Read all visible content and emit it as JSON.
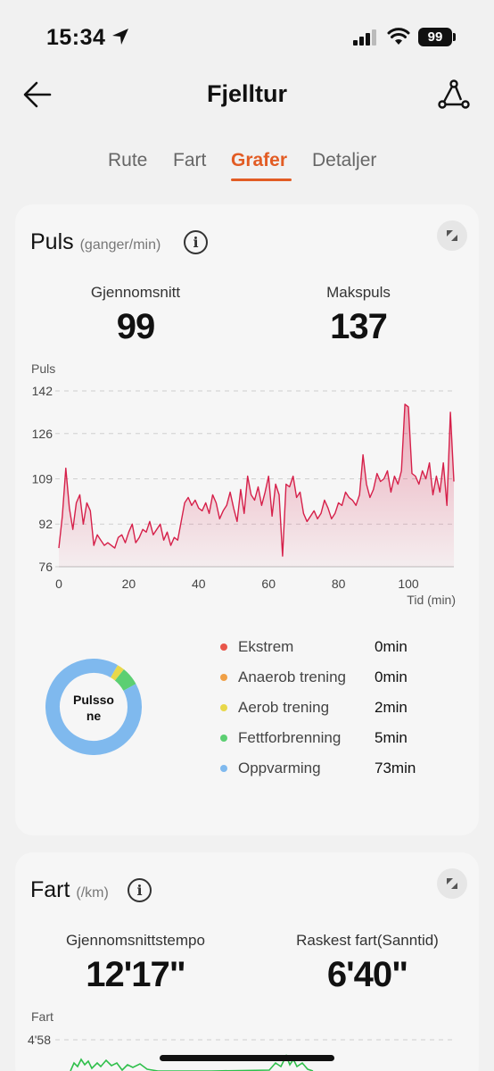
{
  "status": {
    "time": "15:34",
    "battery": "99"
  },
  "nav": {
    "title": "Fjelltur"
  },
  "tabs": [
    {
      "label": "Rute",
      "active": false
    },
    {
      "label": "Fart",
      "active": false
    },
    {
      "label": "Grafer",
      "active": true
    },
    {
      "label": "Detaljer",
      "active": false
    }
  ],
  "pulse": {
    "title": "Puls",
    "unit": "(ganger/min)",
    "avg_label": "Gjennomsnitt",
    "avg_value": "99",
    "max_label": "Makspuls",
    "max_value": "137"
  },
  "pulse_zones": {
    "center_label_line1": "Pulsso",
    "center_label_line2": "ne",
    "items": [
      {
        "label": "Ekstrem",
        "value": "0min",
        "minutes": 0,
        "color": "#e8564a"
      },
      {
        "label": "Anaerob trening",
        "value": "0min",
        "minutes": 0,
        "color": "#f0a046"
      },
      {
        "label": "Aerob trening",
        "value": "2min",
        "minutes": 2,
        "color": "#e8d84a"
      },
      {
        "label": "Fettforbrenning",
        "value": "5min",
        "minutes": 5,
        "color": "#5ccf72"
      },
      {
        "label": "Oppvarming",
        "value": "73min",
        "minutes": 73,
        "color": "#7fb9ee"
      }
    ]
  },
  "speed": {
    "title": "Fart",
    "unit": "(/km)",
    "avg_label": "Gjennomsnittstempo",
    "avg_value": "12'17\"",
    "max_label": "Raskest fart(Sanntid)",
    "max_value": "6'40\""
  },
  "chart_data": [
    {
      "type": "area",
      "ylabel": "Puls",
      "xlabel": "Tid (min)",
      "yticks": [
        "142",
        "126",
        "109",
        "92",
        "76"
      ],
      "ytick_values": [
        142,
        126,
        109,
        92,
        76
      ],
      "xticks": [
        "0",
        "20",
        "40",
        "60",
        "80",
        "100"
      ],
      "xtick_values": [
        0,
        20,
        40,
        60,
        80,
        100
      ],
      "xlim": [
        0,
        113
      ],
      "ylim": [
        76,
        142
      ],
      "color": "#d6204a",
      "series": [
        {
          "x": [
            0,
            1,
            2,
            3,
            4,
            5,
            6,
            7,
            8,
            9,
            10,
            11,
            12,
            13,
            14,
            15,
            16,
            17,
            18,
            19,
            20,
            21,
            22,
            23,
            24,
            25,
            26,
            27,
            28,
            29,
            30,
            31,
            32,
            33,
            34,
            35,
            36,
            37,
            38,
            39,
            40,
            41,
            42,
            43,
            44,
            45,
            46,
            47,
            48,
            49,
            50,
            51,
            52,
            53,
            54,
            55,
            56,
            57,
            58,
            59,
            60,
            61,
            62,
            63,
            64,
            65,
            66,
            67,
            68,
            69,
            70,
            71,
            72,
            73,
            74,
            75,
            76,
            77,
            78,
            79,
            80,
            81,
            82,
            83,
            84,
            85,
            86,
            87,
            88,
            89,
            90,
            91,
            92,
            93,
            94,
            95,
            96,
            97,
            98,
            99,
            100,
            101,
            102,
            103,
            104,
            105,
            106,
            107,
            108,
            109,
            110,
            111,
            112,
            113
          ],
          "values": [
            83,
            95,
            113,
            98,
            90,
            100,
            103,
            92,
            100,
            97,
            84,
            88,
            86,
            84,
            85,
            84,
            83,
            87,
            88,
            85,
            89,
            92,
            85,
            87,
            90,
            89,
            93,
            88,
            90,
            92,
            86,
            89,
            84,
            87,
            86,
            93,
            100,
            102,
            99,
            101,
            98,
            97,
            100,
            96,
            103,
            100,
            94,
            97,
            99,
            104,
            98,
            93,
            105,
            96,
            110,
            103,
            101,
            106,
            99,
            104,
            110,
            95,
            107,
            103,
            80,
            107,
            106,
            110,
            102,
            104,
            96,
            93,
            95,
            97,
            94,
            96,
            101,
            98,
            94,
            96,
            100,
            99,
            104,
            102,
            101,
            99,
            103,
            118,
            107,
            102,
            105,
            111,
            108,
            109,
            112,
            104,
            110,
            107,
            112,
            137,
            136,
            111,
            110,
            107,
            112,
            109,
            115,
            103,
            110,
            104,
            115,
            99,
            134,
            108
          ]
        }
      ]
    },
    {
      "type": "line",
      "ylabel": "Fart",
      "yticks": [
        "4'58"
      ],
      "color": "#2fbf4b"
    }
  ]
}
